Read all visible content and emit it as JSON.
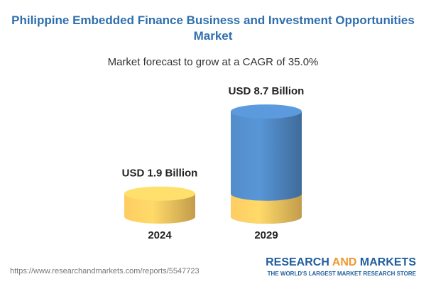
{
  "chart_data": {
    "type": "cylinder",
    "title": "Philippine Embedded Finance Business and Investment Opportunities Market",
    "subtitle": "Market forecast to grow at a CAGR of 35.0%",
    "categories": [
      "2024",
      "2029"
    ],
    "values": [
      1.9,
      8.7
    ],
    "value_labels": [
      "USD 1.9 Billion",
      "USD 8.7 Billion"
    ],
    "colors": [
      "#f2c35e",
      "#4f86c0"
    ]
  },
  "footer": {
    "url": "https://www.researchandmarkets.com/reports/5547723",
    "brand": [
      "RESEARCH",
      "AND",
      "MARKETS"
    ],
    "tagline": "THE WORLD'S LARGEST MARKET RESEARCH STORE"
  }
}
